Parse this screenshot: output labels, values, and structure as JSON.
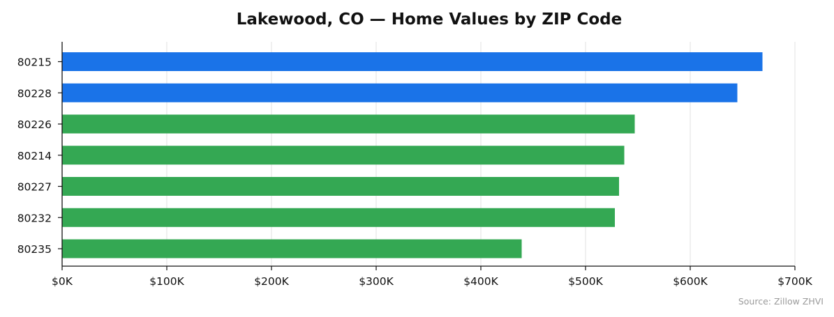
{
  "chart_data": {
    "type": "bar",
    "orientation": "horizontal",
    "title": "Lakewood, CO — Home Values by ZIP Code",
    "xlabel": "",
    "ylabel": "",
    "categories": [
      "80215",
      "80228",
      "80226",
      "80214",
      "80227",
      "80232",
      "80235"
    ],
    "values": [
      669000,
      645000,
      547000,
      537000,
      532000,
      528000,
      439000
    ],
    "bar_colors": [
      "#1a73e8",
      "#1a73e8",
      "#34a853",
      "#34a853",
      "#34a853",
      "#34a853",
      "#34a853"
    ],
    "xlim": [
      0,
      700000
    ],
    "x_ticks": [
      0,
      100000,
      200000,
      300000,
      400000,
      500000,
      600000,
      700000
    ],
    "x_tick_labels": [
      "$0K",
      "$100K",
      "$200K",
      "$300K",
      "$400K",
      "$500K",
      "$600K",
      "$700K"
    ],
    "grid": "x-only",
    "source": "Source: Zillow ZHVI"
  }
}
